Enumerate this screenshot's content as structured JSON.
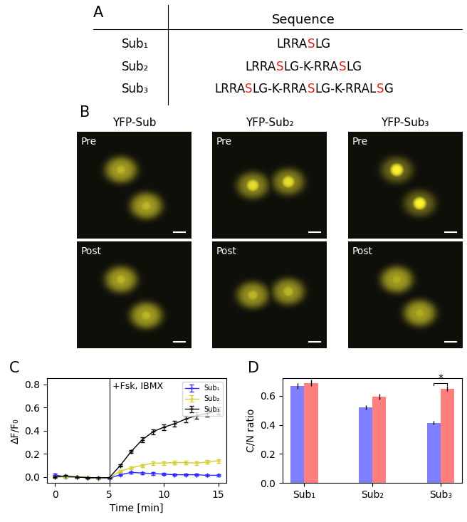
{
  "panel_labels": [
    "A",
    "B",
    "C",
    "D"
  ],
  "table": {
    "header": "Sequence",
    "highlight_residue": "S",
    "highlight_color": "#e0201b",
    "rows": [
      [
        "Sub₁",
        "LRRASLG"
      ],
      [
        "Sub₂",
        "LRRASLG-K-RRASLG"
      ],
      [
        "Sub₃",
        "LRRASLG-K-RRASLG-K-RRALSG"
      ]
    ]
  },
  "images": {
    "columns": [
      "YFP-Sub",
      "YFP-Sub₂",
      "YFP-Sub₃"
    ],
    "rows": [
      "Pre",
      "Post"
    ]
  },
  "chart_data": [
    {
      "type": "line",
      "x_label": "Time [min]",
      "y_label": "ΔF/F₀",
      "x": [
        0,
        1,
        2,
        3,
        4,
        5,
        6,
        7,
        8,
        9,
        10,
        11,
        12,
        13,
        14,
        15
      ],
      "series": [
        {
          "name": "Sub₁",
          "color": "#2a2aff",
          "marker": "+",
          "values": [
            0.02,
            0.0,
            0.0,
            -0.005,
            -0.01,
            -0.01,
            0.02,
            0.04,
            0.035,
            0.03,
            0.025,
            0.02,
            0.02,
            0.02,
            0.015,
            0.015
          ],
          "errors": [
            0.01,
            0.005,
            0.005,
            0.005,
            0.005,
            0.005,
            0.008,
            0.01,
            0.01,
            0.01,
            0.01,
            0.01,
            0.01,
            0.01,
            0.01,
            0.01
          ]
        },
        {
          "name": "Sub₂",
          "color": "#d6cc2e",
          "marker": "+",
          "values": [
            0.0,
            0.0,
            0.0,
            0.0,
            -0.01,
            -0.005,
            0.05,
            0.08,
            0.1,
            0.12,
            0.12,
            0.125,
            0.125,
            0.12,
            0.13,
            0.14
          ],
          "errors": [
            0.005,
            0.005,
            0.005,
            0.005,
            0.005,
            0.005,
            0.01,
            0.012,
            0.012,
            0.015,
            0.015,
            0.015,
            0.015,
            0.015,
            0.015,
            0.015
          ]
        },
        {
          "name": "Sub₃",
          "color": "#000000",
          "marker": "+",
          "values": [
            0.0,
            0.01,
            0.0,
            -0.005,
            -0.005,
            -0.005,
            0.1,
            0.22,
            0.32,
            0.39,
            0.43,
            0.46,
            0.5,
            0.53,
            0.55,
            0.57
          ],
          "errors": [
            0.005,
            0.005,
            0.005,
            0.005,
            0.005,
            0.005,
            0.01,
            0.015,
            0.02,
            0.02,
            0.025,
            0.025,
            0.025,
            0.025,
            0.03,
            0.03
          ]
        }
      ],
      "vline": {
        "x": 5,
        "label": "+Fsk, IBMX"
      },
      "xlim": [
        -0.75,
        15.75
      ],
      "xticks": [
        0,
        5,
        10,
        15
      ],
      "ylim": [
        -0.05,
        0.85
      ],
      "yticks": [
        {
          "value": 0.0,
          "label": "0.0"
        },
        {
          "value": 0.2,
          "label": "0.2"
        },
        {
          "value": 0.4,
          "label": "0.4"
        },
        {
          "value": 0.6,
          "label": "0.6"
        },
        {
          "value": 0.8,
          "label": "0.8"
        }
      ],
      "legend": "upper right",
      "grid": false
    },
    {
      "type": "bar",
      "y_label": "C/N ratio",
      "categories": [
        "Sub₁",
        "Sub₂",
        "Sub₃"
      ],
      "series": [
        {
          "color": "#7f7fff",
          "values": [
            0.67,
            0.52,
            0.415
          ],
          "errors": [
            0.02,
            0.015,
            0.012
          ]
        },
        {
          "color": "#ff7f7f",
          "values": [
            0.69,
            0.595,
            0.65
          ],
          "errors": [
            0.02,
            0.02,
            0.018
          ]
        }
      ],
      "significance": [
        {
          "category": "Sub₃",
          "label": "*"
        }
      ],
      "ylim": [
        0.0,
        0.72
      ],
      "yticks": [
        {
          "value": 0.0,
          "label": "0.0"
        },
        {
          "value": 0.2,
          "label": "0.2"
        },
        {
          "value": 0.4,
          "label": "0.4"
        },
        {
          "value": 0.6,
          "label": "0.6"
        }
      ],
      "grid": false
    }
  ]
}
